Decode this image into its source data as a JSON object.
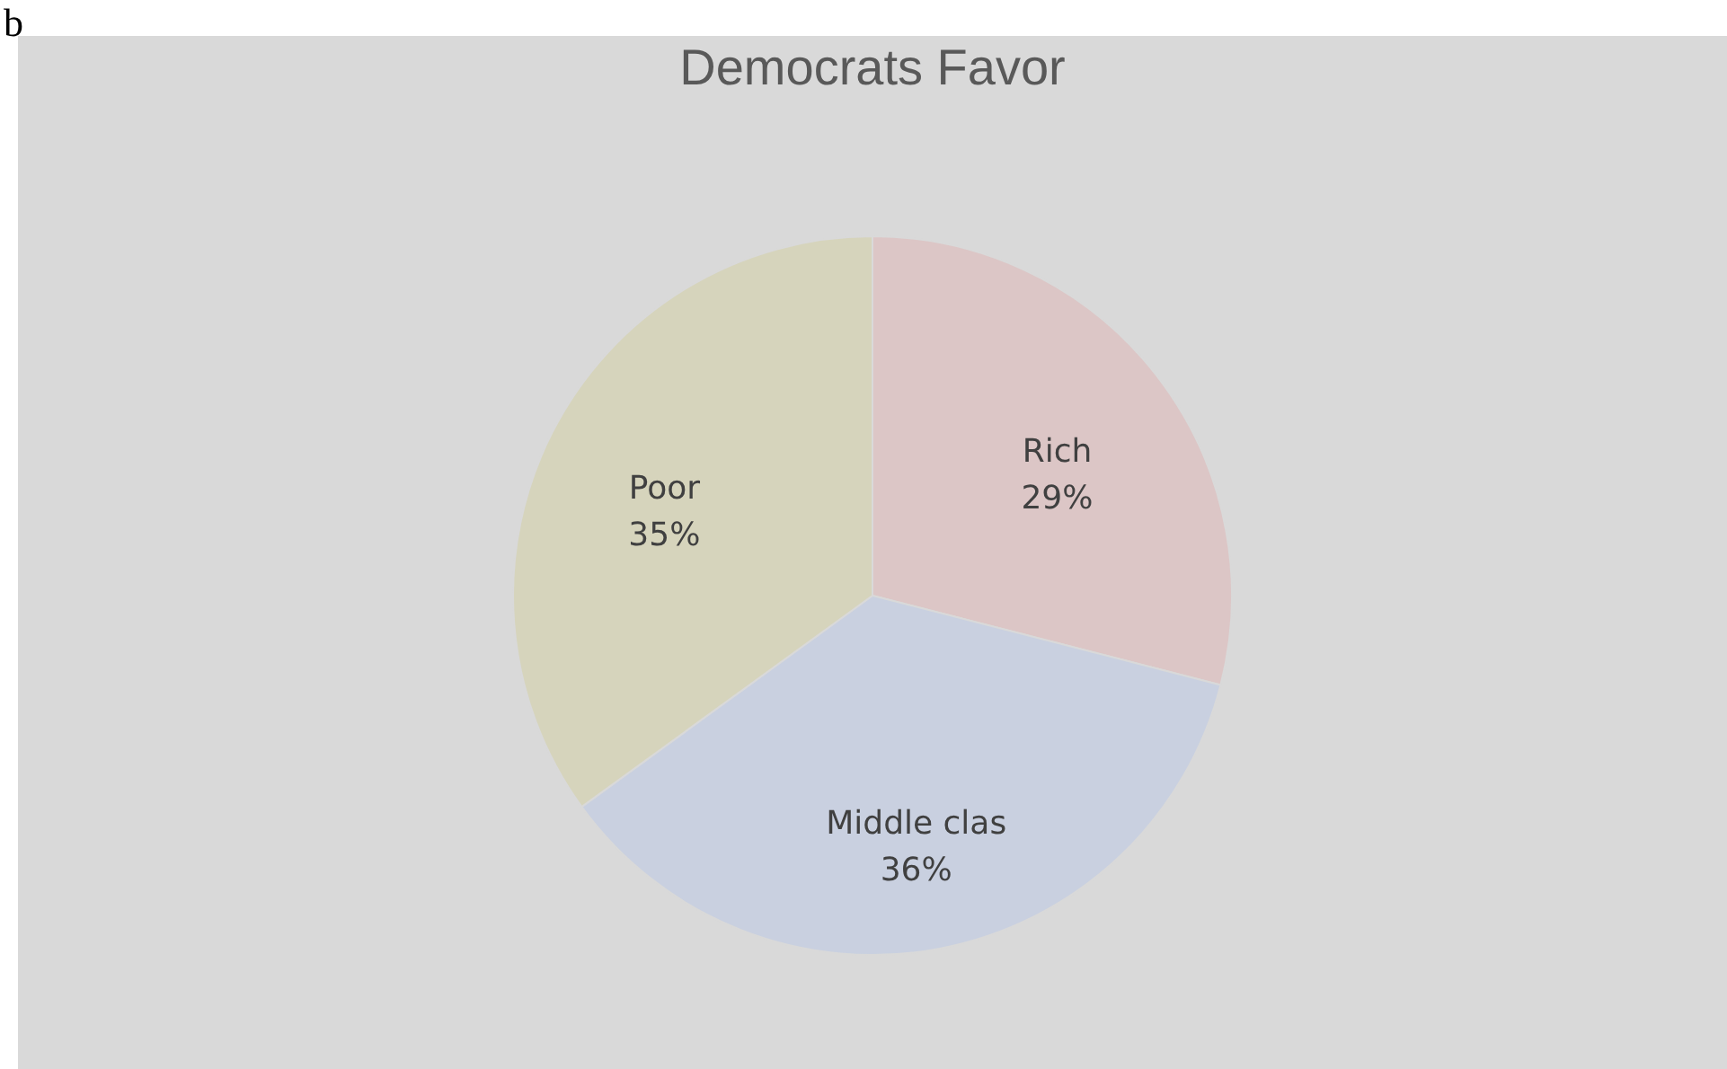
{
  "chart_data": {
    "type": "pie",
    "title": "Democrats Favor",
    "categories": [
      "Rich",
      "Middle clas",
      "Poor"
    ],
    "values": [
      29,
      36,
      35
    ],
    "value_labels": [
      "29%",
      "36%",
      "35%"
    ],
    "colors": [
      "#dcc6c6",
      "#c9d0e0",
      "#d6d4bc"
    ],
    "annotations": [
      "b"
    ]
  }
}
